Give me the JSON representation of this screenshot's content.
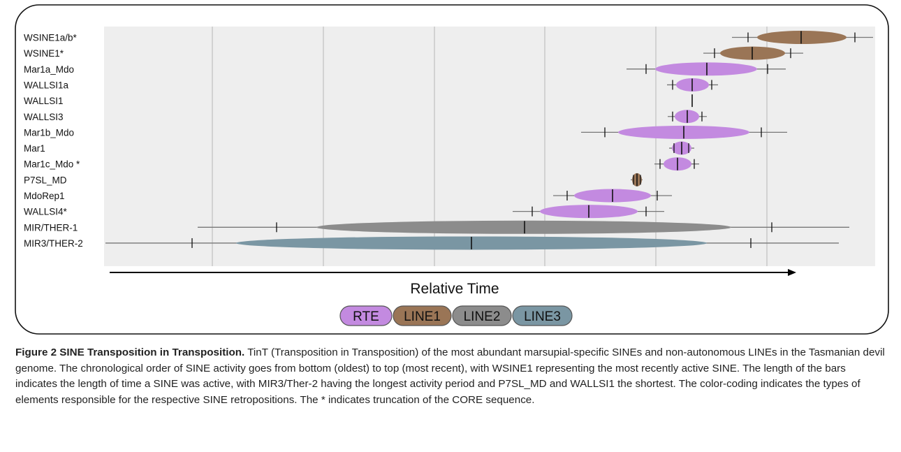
{
  "chart_data": {
    "type": "range",
    "x_axis_label": "Relative Time",
    "grid": true,
    "legend_position": "bottom",
    "legend": [
      {
        "name": "RTE",
        "color": "#c38ae0"
      },
      {
        "name": "LINE1",
        "color": "#9a7556"
      },
      {
        "name": "LINE2",
        "color": "#8c8c8c"
      },
      {
        "name": "LINE3",
        "color": "#7a96a3"
      }
    ],
    "rows": [
      {
        "label": "WSINE1a/b*",
        "family": "LINE1",
        "min": 1048,
        "q1": 1071,
        "peak": 1147,
        "q3": 1224,
        "max": 1250,
        "bar_start": 1084,
        "bar_end": 1212
      },
      {
        "label": "WSINE1*",
        "family": "LINE1",
        "min": 1007,
        "q1": 1023,
        "peak": 1077,
        "q3": 1132,
        "max": 1150,
        "bar_start": 1031,
        "bar_end": 1124
      },
      {
        "label": "Mar1a_Mdo",
        "family": "RTE",
        "min": 897,
        "q1": 925,
        "peak": 1012,
        "q3": 1099,
        "max": 1125,
        "bar_start": 938,
        "bar_end": 1084
      },
      {
        "label": "WALLSI1a",
        "family": "RTE",
        "min": 955,
        "q1": 963,
        "peak": 991,
        "q3": 1019,
        "max": 1028,
        "bar_start": 968,
        "bar_end": 1015
      },
      {
        "label": "WALLSI1",
        "family": "RTE",
        "min": 991,
        "q1": 991,
        "peak": 991,
        "q3": 991,
        "max": 991,
        "bar_start": 991,
        "bar_end": 991
      },
      {
        "label": "WALLSI3",
        "family": "RTE",
        "min": 956,
        "q1": 963,
        "peak": 984,
        "q3": 1005,
        "max": 1012,
        "bar_start": 966,
        "bar_end": 1001
      },
      {
        "label": "Mar1b_Mdo",
        "family": "RTE",
        "min": 832,
        "q1": 866,
        "peak": 979,
        "q3": 1090,
        "max": 1127,
        "bar_start": 885,
        "bar_end": 1073
      },
      {
        "label": "Mar1",
        "family": "RTE",
        "min": 958,
        "q1": 965,
        "peak": 976,
        "q3": 986,
        "max": 994,
        "bar_start": 962,
        "bar_end": 990
      },
      {
        "label": "Mar1c_Mdo *",
        "family": "RTE",
        "min": 937,
        "q1": 945,
        "peak": 970,
        "q3": 994,
        "max": 1001,
        "bar_start": 950,
        "bar_end": 990
      },
      {
        "label": "P7SL_MD",
        "family": "LINE1",
        "min": 903,
        "q1": 907,
        "peak": 912,
        "q3": 917,
        "max": 920,
        "bar_start": 905,
        "bar_end": 919
      },
      {
        "label": "MdoRep1",
        "family": "RTE",
        "min": 792,
        "q1": 812,
        "peak": 877,
        "q3": 941,
        "max": 962,
        "bar_start": 822,
        "bar_end": 932
      },
      {
        "label": "WALLSI4*",
        "family": "RTE",
        "min": 734,
        "q1": 762,
        "peak": 843,
        "q3": 925,
        "max": 951,
        "bar_start": 773,
        "bar_end": 913
      },
      {
        "label": "MIR/THER-1",
        "family": "LINE2",
        "min": 283,
        "q1": 396,
        "peak": 751,
        "q3": 1105,
        "max": 1216,
        "bar_start": 453,
        "bar_end": 1047
      },
      {
        "label": "MIR3/THER-2",
        "family": "LINE3",
        "min": 151,
        "q1": 275,
        "peak": 675,
        "q3": 1075,
        "max": 1201,
        "bar_start": 338,
        "bar_end": 1012
      }
    ]
  },
  "caption": {
    "title": "Figure 2 SINE Transposition in Transposition.",
    "body": "TinT (Transposition in Transposition) of the most abundant marsupial-specific SINEs and non-autonomous LINEs in the Tasmanian devil genome. The chronological order of SINE activity goes from bottom (oldest) to top (most recent), with WSINE1 representing the most recently active SINE. The length of the bars indicates the length of time a SINE was active, with MIR3/Ther-2 having the longest activity period and P7SL_MD and WALLSI1 the shortest. The color-coding indicates the types of elements responsible for the respective SINE retropositions. The * indicates truncation of the CORE sequence."
  }
}
